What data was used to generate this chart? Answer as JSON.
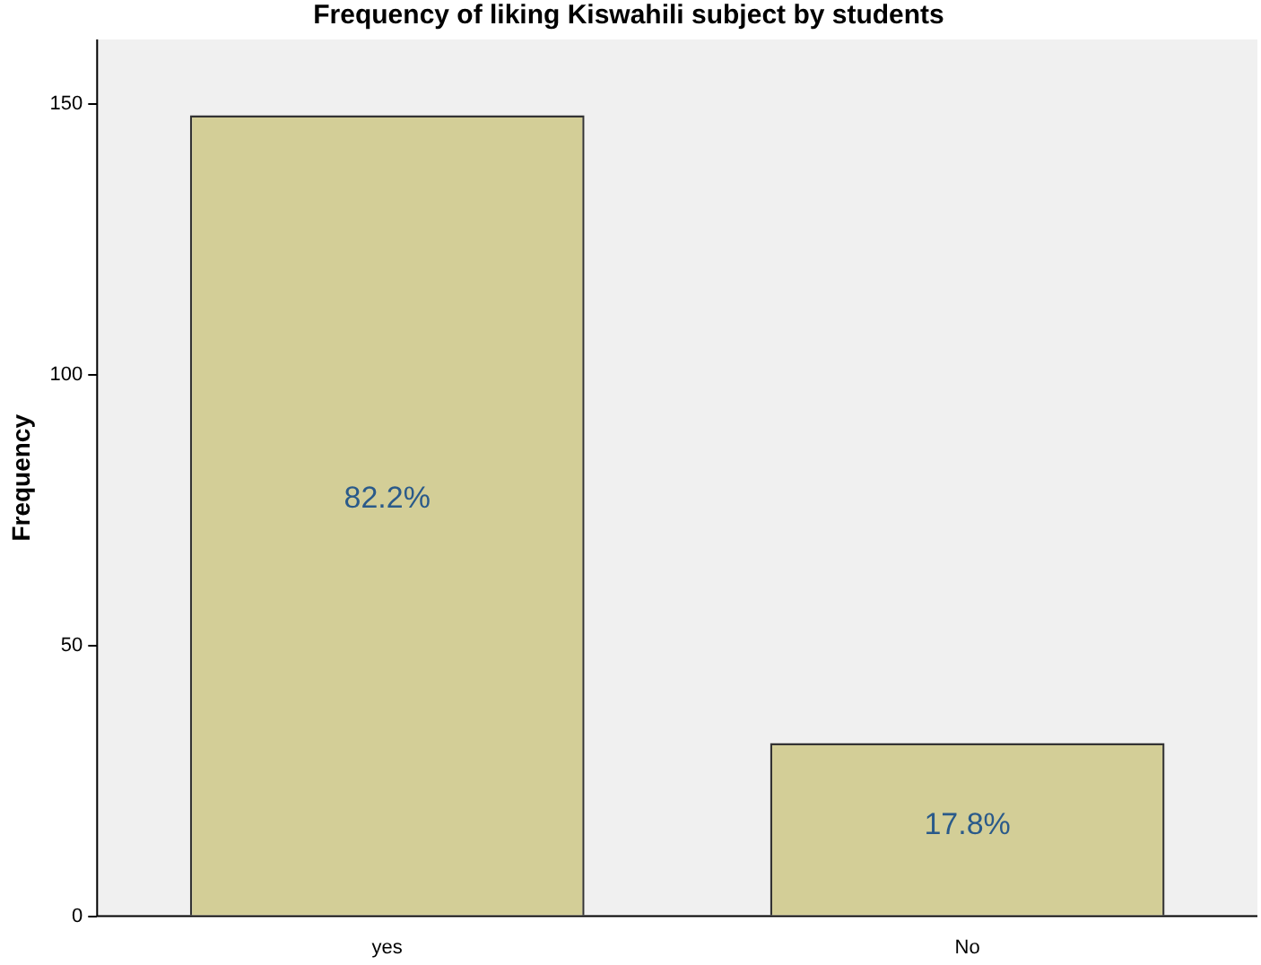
{
  "chart_data": {
    "type": "bar",
    "title": "Frequency of liking Kiswahili subject by students",
    "ylabel": "Frequency",
    "categories": [
      "yes",
      "No"
    ],
    "values": [
      148,
      32
    ],
    "annotations": [
      "82.2%",
      "17.8%"
    ],
    "color": "#d3ce97",
    "ylim": [
      0,
      162
    ],
    "yticks": [
      0,
      50,
      100,
      150
    ],
    "grid": false,
    "legend": false
  }
}
